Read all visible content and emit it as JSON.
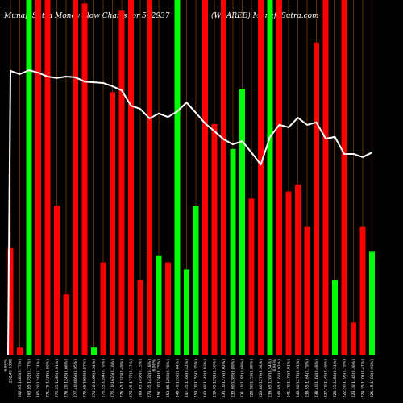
{
  "colors": {
    "background": "#000000",
    "up": "#00FF00",
    "down": "#FF0000",
    "line": "#FFFFFF",
    "grid": "#7A3A00",
    "text": "#FFFFFF"
  },
  "chart_data": {
    "type": "bar",
    "title": "MunafaSutra Money Flow Charts for 532937",
    "title_right": "(WAAREE) MunafaSutra.com",
    "xlabel": "",
    "ylabel": "",
    "ylim": [
      0,
      100
    ],
    "grid": "vertical",
    "categories": [
      "262.45 3308",
      "262.65 1486(0.77%)",
      "263.95 1352(1.77%)",
      "265.20 1242(1.74%)",
      "271.75 1233(1.80%)",
      "275.35 1285(1.91%)",
      "276.20 1248(1.66%)",
      "277.40 4863(1.95%)",
      "275.65 1952(0.87%)",
      "274.20 1493(0.54%)",
      "275.55 1394(0.70%)",
      "275.10 1636(0.16%)",
      "276.45 1329(0.49%)",
      "270.25 1777(2.17%)",
      "269.85 1495(0.15%)",
      "270.35 1432(0.18%)",
      "251.10 1241(3.75%)",
      "253.05 1258(0.78%)",
      "248.40 1262(1.84%)",
      "247.35 1163(0.42%)",
      "250.70 1155(1.35%)",
      "243.60 1143(2.83%)",
      "239.95 1291(1.50%)",
      "235.10 1273(2.02%)",
      "233.00 1288(0.89%)",
      "231.40 1181(0.69%)",
      "228.90 1159(1.08%)",
      "220.80 1279(3.54%)",
      "239.65 1267(8.54%)",
      "246.65 1165(2.92%)",
      "241.70 1176(2.01%)",
      "243.90 1278(0.91%)",
      "239.55 1164(1.79%)",
      "238.40 1168(0.48%)",
      "227.70 1146(4.49%)",
      "226.55 1288(0.51%)",
      "222.50 1195(1.79%)",
      "223.30 1145(0.36%)",
      "224.35 1101(0.47%)",
      "226.45 1108(0.93%)"
    ],
    "markers": [
      {
        "at": 0,
        "label": "6.96%"
      },
      {
        "at": 16,
        "label": "6.90%"
      },
      {
        "at": 29,
        "label": "6.96%"
      }
    ],
    "bars": {
      "values": [
        30,
        2,
        100,
        100,
        100,
        42,
        17,
        100,
        99,
        2,
        26,
        74,
        97,
        100,
        21,
        100,
        28,
        26,
        100,
        24,
        42,
        100,
        65,
        100,
        58,
        75,
        44,
        100,
        100,
        100,
        46,
        48,
        36,
        88,
        100,
        21,
        100,
        9,
        36,
        29
      ],
      "direction": [
        "down",
        "down",
        "up",
        "down",
        "down",
        "down",
        "down",
        "down",
        "down",
        "up",
        "down",
        "down",
        "down",
        "down",
        "down",
        "down",
        "up",
        "down",
        "up",
        "up",
        "up",
        "down",
        "down",
        "down",
        "up",
        "up",
        "down",
        "down",
        "up",
        "down",
        "down",
        "down",
        "down",
        "down",
        "down",
        "up",
        "down",
        "down",
        "down",
        "up"
      ]
    },
    "line": {
      "values": [
        80,
        79.1,
        80.2,
        79.5,
        78.4,
        78,
        78.4,
        78.2,
        77,
        76.8,
        76.6,
        75.7,
        74.5,
        70.2,
        69.3,
        66.6,
        68,
        67,
        68.6,
        71.1,
        68.2,
        65.2,
        63,
        60.7,
        59.3,
        60.2,
        57,
        53.6,
        61.4,
        64.8,
        64.1,
        66.8,
        64.8,
        65.5,
        60.9,
        61.4,
        56.6,
        56.6,
        55.7,
        57
      ]
    }
  }
}
